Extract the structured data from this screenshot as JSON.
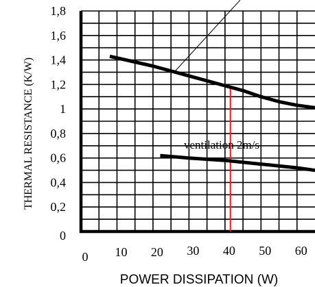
{
  "chart_data": {
    "type": "line",
    "title": "",
    "xlabel": "POWER DISSIPATION (W)",
    "ylabel": "THERMAL RESISTANCE (K/W)",
    "xlim": [
      0,
      65
    ],
    "ylim": [
      0,
      1.8
    ],
    "x_ticks": [
      "0",
      "10",
      "20",
      "30",
      "40",
      "50",
      "60"
    ],
    "y_ticks": [
      "0",
      "0,2",
      "0,4",
      "0,6",
      "0,8",
      "1",
      "1,2",
      "1,4",
      "1,6",
      "1,8"
    ],
    "grid": true,
    "series": [
      {
        "name": "",
        "x": [
          8,
          20,
          30,
          40,
          45,
          50,
          55,
          60,
          65
        ],
        "y": [
          1.43,
          1.35,
          1.27,
          1.19,
          1.15,
          1.1,
          1.06,
          1.03,
          1.01
        ]
      },
      {
        "name": "ventilation  2m/s",
        "x": [
          22,
          30,
          40,
          50,
          60,
          65
        ],
        "y": [
          0.62,
          0.6,
          0.58,
          0.55,
          0.52,
          0.5
        ]
      }
    ],
    "marker_line": {
      "x": 41.5,
      "y_top": 1.17,
      "color": "#e02020"
    },
    "annotations": [
      "ventilation  2m/s"
    ],
    "colors": {
      "line": "#000000",
      "grid": "#000000",
      "marker": "#e02020"
    }
  }
}
